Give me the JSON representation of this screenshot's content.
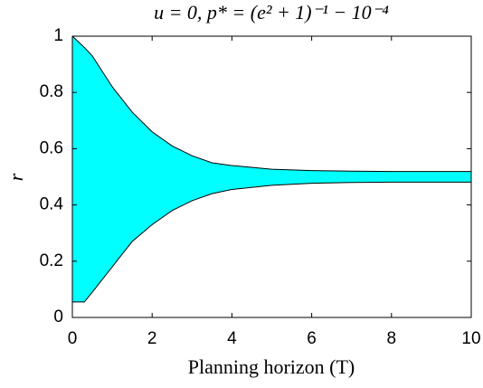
{
  "chart_data": {
    "type": "band",
    "title": "u = 0, p* = (e² + 1)⁻¹ − 10⁻⁴",
    "x_label": "Planning horizon (T)",
    "y_label": "r",
    "fill_color": "#00ffff",
    "x": [
      0,
      0.3,
      0.5,
      1,
      1.5,
      2,
      2.5,
      3,
      3.5,
      4,
      5,
      6,
      7,
      8,
      10
    ],
    "series": [
      {
        "color": "#000000",
        "values": [
          1,
          0.96,
          0.93,
          0.82,
          0.73,
          0.66,
          0.61,
          0.575,
          0.55,
          0.54,
          0.527,
          0.522,
          0.52,
          0.519,
          0.519
        ]
      },
      {
        "color": "#000000",
        "values": [
          0.055,
          0.055,
          0.09,
          0.18,
          0.27,
          0.33,
          0.38,
          0.415,
          0.44,
          0.455,
          0.47,
          0.477,
          0.48,
          0.481,
          0.481
        ]
      }
    ],
    "xlim": [
      0,
      10
    ],
    "xticks": [
      0,
      2,
      4,
      6,
      8,
      10
    ],
    "ylim": [
      0,
      1
    ],
    "yticks": [
      0,
      0.2,
      0.4,
      0.6,
      0.8,
      1
    ]
  }
}
